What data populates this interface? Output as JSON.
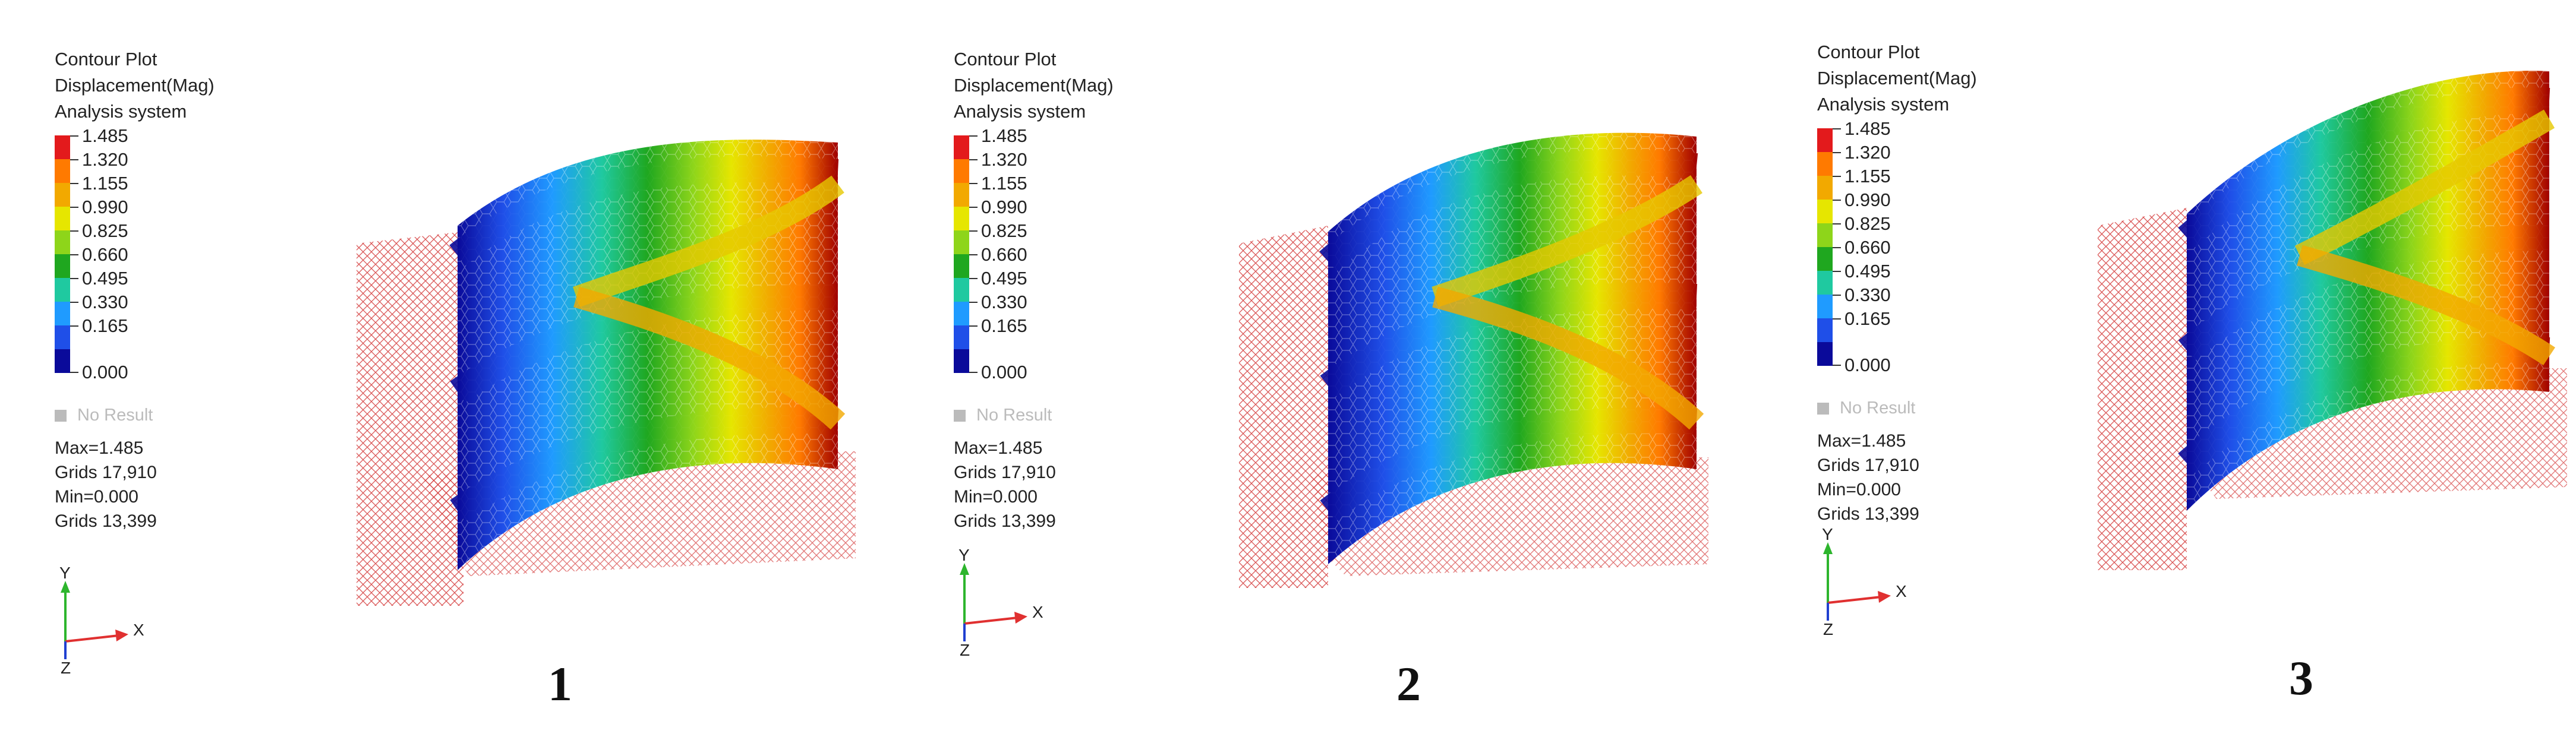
{
  "panels": [
    {
      "legend": {
        "title_lines": [
          "Contour Plot",
          "Displacement(Mag)",
          "Analysis system"
        ],
        "scale_values": [
          "1.485",
          "1.320",
          "1.155",
          "0.990",
          "0.825",
          "0.660",
          "0.495",
          "0.330",
          "0.165",
          "0.000"
        ],
        "no_result": "No Result",
        "max": "Max=1.485",
        "max_grid": "Grids 17,910",
        "min": "Min=0.000",
        "min_grid": "Grids 13,399"
      },
      "axes": {
        "y": "Y",
        "x": "X",
        "z": "Z"
      },
      "label": "1"
    },
    {
      "legend": {
        "title_lines": [
          "Contour Plot",
          "Displacement(Mag)",
          "Analysis system"
        ],
        "scale_values": [
          "1.485",
          "1.320",
          "1.155",
          "0.990",
          "0.825",
          "0.660",
          "0.495",
          "0.330",
          "0.165",
          "0.000"
        ],
        "no_result": "No Result",
        "max": "Max=1.485",
        "max_grid": "Grids 17,910",
        "min": "Min=0.000",
        "min_grid": "Grids 13,399"
      },
      "axes": {
        "y": "Y",
        "x": "X",
        "z": "Z"
      },
      "label": "2"
    },
    {
      "legend": {
        "title_lines": [
          "Contour Plot",
          "Displacement(Mag)",
          "Analysis system"
        ],
        "scale_values": [
          "1.485",
          "1.320",
          "1.155",
          "0.990",
          "0.825",
          "0.660",
          "0.495",
          "0.330",
          "0.165",
          "0.000"
        ],
        "no_result": "No Result",
        "max": "Max=1.485",
        "max_grid": "Grids 17,910",
        "min": "Min=0.000",
        "min_grid": "Grids 13,399"
      },
      "axes": {
        "y": "Y",
        "x": "X",
        "z": "Z"
      },
      "label": "3"
    }
  ],
  "colors": {
    "scale": [
      "#e31a1c",
      "#ff7a00",
      "#f2a900",
      "#e6e600",
      "#8ed51a",
      "#1fa71f",
      "#1fc9a0",
      "#1f9bff",
      "#1f4fe8",
      "#0a0a9a"
    ],
    "mesh_wire": "#d43a3a",
    "no_result": "#bbbbbb"
  }
}
